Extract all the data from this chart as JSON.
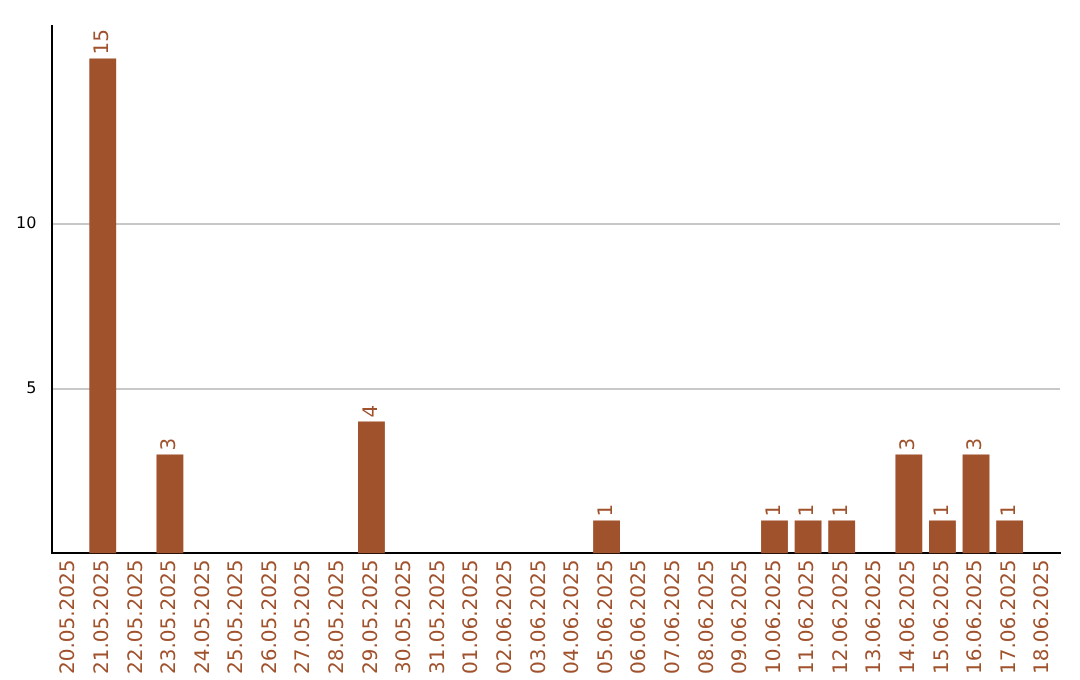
{
  "chart_data": {
    "type": "bar",
    "categories": [
      "20.05.2025",
      "21.05.2025",
      "22.05.2025",
      "23.05.2025",
      "24.05.2025",
      "25.05.2025",
      "26.05.2025",
      "27.05.2025",
      "28.05.2025",
      "29.05.2025",
      "30.05.2025",
      "31.05.2025",
      "01.06.2025",
      "02.06.2025",
      "03.06.2025",
      "04.06.2025",
      "05.06.2025",
      "06.06.2025",
      "07.06.2025",
      "08.06.2025",
      "09.06.2025",
      "10.06.2025",
      "11.06.2025",
      "12.06.2025",
      "13.06.2025",
      "14.06.2025",
      "15.06.2025",
      "16.06.2025",
      "17.06.2025",
      "18.06.2025"
    ],
    "values": [
      0,
      15,
      0,
      3,
      0,
      0,
      0,
      0,
      0,
      4,
      0,
      0,
      0,
      0,
      0,
      0,
      1,
      0,
      0,
      0,
      0,
      1,
      1,
      1,
      0,
      3,
      1,
      3,
      1,
      0
    ],
    "value_labels": [
      null,
      "15",
      null,
      "3",
      null,
      null,
      null,
      null,
      null,
      "4",
      null,
      null,
      null,
      null,
      null,
      null,
      "1",
      null,
      null,
      null,
      null,
      "1",
      "1",
      "1",
      null,
      "3",
      "1",
      "3",
      "1",
      null
    ],
    "color": "#a0522d",
    "ylim": [
      0,
      16
    ],
    "yticks": [
      5,
      10
    ],
    "grid": "y"
  }
}
